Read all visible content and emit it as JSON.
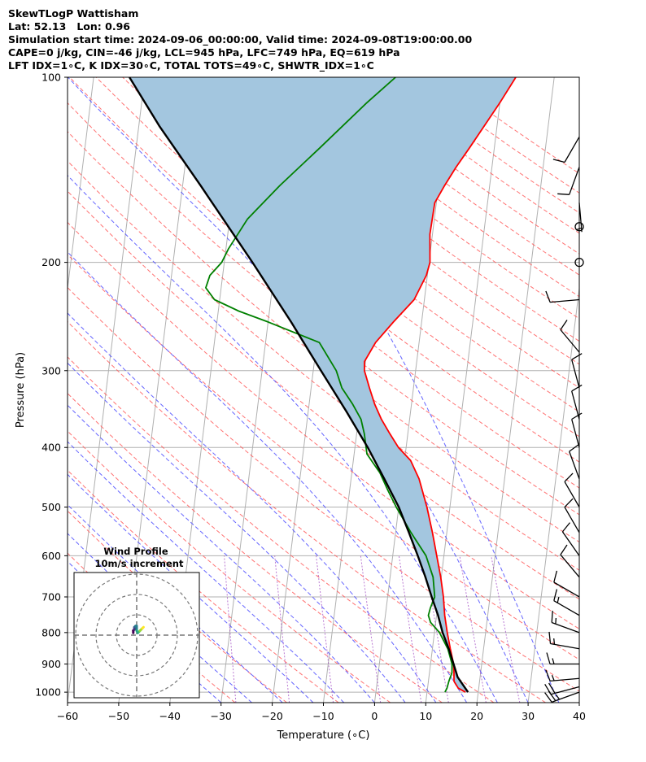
{
  "header": {
    "line1": "SkewTLogP Wattisham",
    "line2": "Lat: 52.13   Lon: 0.96",
    "line3": "Simulation start time: 2024-09-06_00:00:00, Valid time: 2024-09-08T19:00:00.00",
    "line4": "CAPE=0 j/kg, CIN=-46 j/kg, LCL=945 hPa, LFC=749 hPa, EQ=619 hPa",
    "line5": "LFT IDX=1∘C, K IDX=30∘C, TOTAL TOTS=49∘C, SHWTR_IDX=1∘C"
  },
  "chart_data": {
    "type": "skewt-logp",
    "xlabel": "Temperature (∘C)",
    "ylabel": "Pressure (hPa)",
    "xlim": [
      -60,
      40
    ],
    "ylim": [
      1040,
      100
    ],
    "x_ticks": [
      "−60",
      "−50",
      "−40",
      "−30",
      "−20",
      "−10",
      "0",
      "10",
      "20",
      "30",
      "40"
    ],
    "y_ticks": [
      "100",
      "200",
      "300",
      "400",
      "500",
      "600",
      "700",
      "800",
      "900",
      "1000"
    ],
    "temperature": {
      "color": "#ff0000",
      "points": [
        [
          1000,
          17.5
        ],
        [
          985,
          16
        ],
        [
          960,
          15
        ],
        [
          930,
          14.8
        ],
        [
          900,
          14.5
        ],
        [
          850,
          13.5
        ],
        [
          800,
          12.5
        ],
        [
          750,
          11.6
        ],
        [
          700,
          10.9
        ],
        [
          650,
          9.9
        ],
        [
          600,
          8.6
        ],
        [
          550,
          7.2
        ],
        [
          500,
          5.5
        ],
        [
          450,
          3.3
        ],
        [
          420,
          1.2
        ],
        [
          400,
          -1.5
        ],
        [
          380,
          -3.5
        ],
        [
          360,
          -5.5
        ],
        [
          340,
          -7.2
        ],
        [
          320,
          -8.6
        ],
        [
          300,
          -10
        ],
        [
          290,
          -10.2
        ],
        [
          270,
          -8.5
        ],
        [
          250,
          -5.5
        ],
        [
          230,
          -2
        ],
        [
          210,
          -0.2
        ],
        [
          200,
          0.2
        ],
        [
          180,
          -0.5
        ],
        [
          160,
          -0.3
        ],
        [
          150,
          1.2
        ],
        [
          140,
          3
        ],
        [
          130,
          5.2
        ],
        [
          120,
          7.5
        ],
        [
          110,
          10
        ],
        [
          100,
          12.5
        ]
      ]
    },
    "dewpoint": {
      "color": "#008000",
      "points": [
        [
          1000,
          13.5
        ],
        [
          985,
          13.8
        ],
        [
          960,
          14
        ],
        [
          930,
          14.4
        ],
        [
          900,
          14.2
        ],
        [
          850,
          13
        ],
        [
          800,
          11
        ],
        [
          770,
          9
        ],
        [
          750,
          8.4
        ],
        [
          730,
          8.6
        ],
        [
          700,
          9.2
        ],
        [
          650,
          8.4
        ],
        [
          600,
          6.5
        ],
        [
          550,
          3
        ],
        [
          500,
          -0.5
        ],
        [
          470,
          -2.5
        ],
        [
          440,
          -4.5
        ],
        [
          410,
          -7.5
        ],
        [
          380,
          -8.5
        ],
        [
          360,
          -9.5
        ],
        [
          340,
          -11.5
        ],
        [
          320,
          -14
        ],
        [
          300,
          -15.5
        ],
        [
          270,
          -19.5
        ],
        [
          250,
          -30
        ],
        [
          240,
          -36
        ],
        [
          230,
          -41
        ],
        [
          220,
          -43
        ],
        [
          210,
          -42.5
        ],
        [
          200,
          -40.5
        ],
        [
          190,
          -39.5
        ],
        [
          170,
          -36.5
        ],
        [
          150,
          -31
        ],
        [
          130,
          -24
        ],
        [
          110,
          -16
        ],
        [
          100,
          -11
        ]
      ]
    },
    "parcel": {
      "color": "#000000",
      "points": [
        [
          1000,
          18
        ],
        [
          945,
          15.6
        ],
        [
          900,
          14.5
        ],
        [
          850,
          13.2
        ],
        [
          800,
          11.6
        ],
        [
          750,
          10.3
        ],
        [
          700,
          8.6
        ],
        [
          650,
          6.9
        ],
        [
          600,
          4.9
        ],
        [
          550,
          2.6
        ],
        [
          500,
          0
        ],
        [
          450,
          -3.5
        ],
        [
          400,
          -7.5
        ],
        [
          350,
          -12.5
        ],
        [
          300,
          -18.5
        ],
        [
          250,
          -25.5
        ],
        [
          200,
          -34.5
        ],
        [
          150,
          -46.5
        ],
        [
          120,
          -56
        ],
        [
          100,
          -63
        ]
      ]
    },
    "barbs": [
      {
        "p": 1000,
        "speed": 25,
        "dir": 250
      },
      {
        "p": 980,
        "speed": 20,
        "dir": 255
      },
      {
        "p": 950,
        "speed": 15,
        "dir": 265
      },
      {
        "p": 900,
        "speed": 15,
        "dir": 270
      },
      {
        "p": 850,
        "speed": 15,
        "dir": 280
      },
      {
        "p": 800,
        "speed": 15,
        "dir": 290
      },
      {
        "p": 750,
        "speed": 15,
        "dir": 300
      },
      {
        "p": 700,
        "speed": 10,
        "dir": 300
      },
      {
        "p": 650,
        "speed": 10,
        "dir": 320
      },
      {
        "p": 600,
        "speed": 10,
        "dir": 325
      },
      {
        "p": 550,
        "speed": 10,
        "dir": 330
      },
      {
        "p": 500,
        "speed": 10,
        "dir": 330
      },
      {
        "p": 450,
        "speed": 10,
        "dir": 340
      },
      {
        "p": 400,
        "speed": 10,
        "dir": 345
      },
      {
        "p": 360,
        "speed": 10,
        "dir": 345
      },
      {
        "p": 320,
        "speed": 10,
        "dir": 345
      },
      {
        "p": 280,
        "speed": 10,
        "dir": 320
      },
      {
        "p": 230,
        "speed": 10,
        "dir": 265
      },
      {
        "p": 200,
        "speed": 0,
        "dir": 0
      },
      {
        "p": 175,
        "speed": 0,
        "dir": 0
      },
      {
        "p": 160,
        "speed": 5,
        "dir": 175
      },
      {
        "p": 140,
        "speed": 10,
        "dir": 200
      },
      {
        "p": 125,
        "speed": 10,
        "dir": 210
      }
    ],
    "hodograph": {
      "title_line1": "Wind Profile",
      "title_line2": "10m/s increment",
      "points": [
        [
          -3,
          2
        ],
        [
          -3,
          4
        ],
        [
          -2,
          5
        ],
        [
          -2,
          6
        ],
        [
          -2,
          7
        ],
        [
          -1,
          8
        ],
        [
          0,
          8
        ],
        [
          0,
          4
        ],
        [
          1,
          2
        ],
        [
          2,
          3
        ],
        [
          3,
          4
        ],
        [
          4,
          5
        ],
        [
          5,
          6
        ],
        [
          6,
          7
        ]
      ]
    }
  }
}
